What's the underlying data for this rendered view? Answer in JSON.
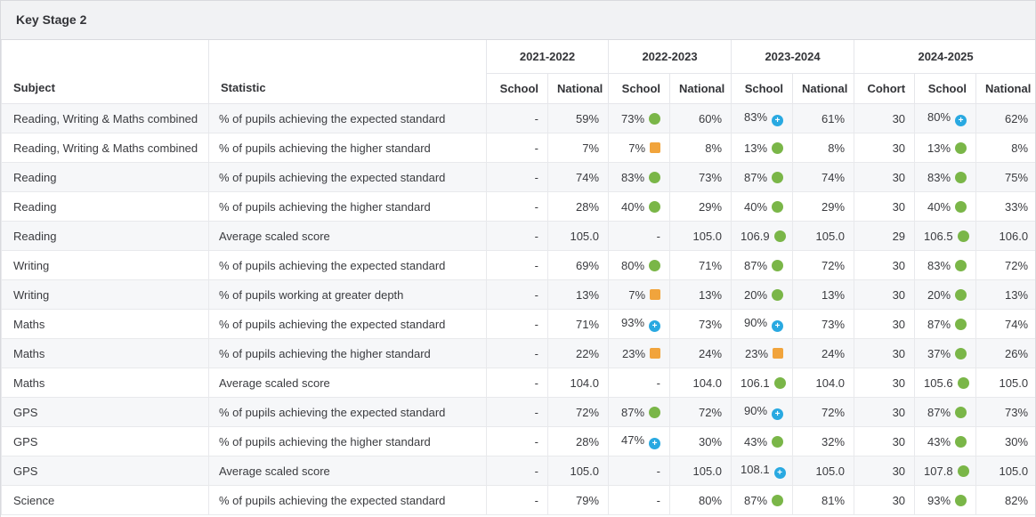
{
  "panel": {
    "title": "Key Stage 2"
  },
  "colors": {
    "icon_green": "#7ab648",
    "icon_orange": "#f1a43c",
    "icon_blue": "#29a9e1",
    "header_band_bg": "#f1f2f4",
    "row_stripe_bg": "#f6f7f9"
  },
  "table": {
    "col_headers": {
      "subject": "Subject",
      "statistic": "Statistic"
    },
    "year_groups": [
      {
        "label": "2021-2022",
        "cols": [
          "School",
          "National"
        ]
      },
      {
        "label": "2022-2023",
        "cols": [
          "School",
          "National"
        ]
      },
      {
        "label": "2023-2024",
        "cols": [
          "School",
          "National"
        ]
      },
      {
        "label": "2024-2025",
        "cols": [
          "Cohort",
          "School",
          "National"
        ]
      }
    ],
    "rows": [
      {
        "subject": "Reading, Writing & Maths combined",
        "statistic": "% of pupils achieving the expected standard",
        "cells": [
          {
            "v": "-"
          },
          {
            "v": "59%"
          },
          {
            "v": "73%",
            "icon": "green-circle"
          },
          {
            "v": "60%"
          },
          {
            "v": "83%",
            "icon": "blue-plus"
          },
          {
            "v": "61%"
          },
          {
            "v": "30"
          },
          {
            "v": "80%",
            "icon": "blue-plus"
          },
          {
            "v": "62%"
          }
        ]
      },
      {
        "subject": "Reading, Writing & Maths combined",
        "statistic": "% of pupils achieving the higher standard",
        "cells": [
          {
            "v": "-"
          },
          {
            "v": "7%"
          },
          {
            "v": "7%",
            "icon": "orange-square"
          },
          {
            "v": "8%"
          },
          {
            "v": "13%",
            "icon": "green-circle"
          },
          {
            "v": "8%"
          },
          {
            "v": "30"
          },
          {
            "v": "13%",
            "icon": "green-circle"
          },
          {
            "v": "8%"
          }
        ]
      },
      {
        "subject": "Reading",
        "statistic": "% of pupils achieving the expected standard",
        "cells": [
          {
            "v": "-"
          },
          {
            "v": "74%"
          },
          {
            "v": "83%",
            "icon": "green-circle"
          },
          {
            "v": "73%"
          },
          {
            "v": "87%",
            "icon": "green-circle"
          },
          {
            "v": "74%"
          },
          {
            "v": "30"
          },
          {
            "v": "83%",
            "icon": "green-circle"
          },
          {
            "v": "75%"
          }
        ]
      },
      {
        "subject": "Reading",
        "statistic": "% of pupils achieving the higher standard",
        "cells": [
          {
            "v": "-"
          },
          {
            "v": "28%"
          },
          {
            "v": "40%",
            "icon": "green-circle"
          },
          {
            "v": "29%"
          },
          {
            "v": "40%",
            "icon": "green-circle"
          },
          {
            "v": "29%"
          },
          {
            "v": "30"
          },
          {
            "v": "40%",
            "icon": "green-circle"
          },
          {
            "v": "33%"
          }
        ]
      },
      {
        "subject": "Reading",
        "statistic": "Average scaled score",
        "cells": [
          {
            "v": "-"
          },
          {
            "v": "105.0"
          },
          {
            "v": "-"
          },
          {
            "v": "105.0"
          },
          {
            "v": "106.9",
            "icon": "green-circle"
          },
          {
            "v": "105.0"
          },
          {
            "v": "29"
          },
          {
            "v": "106.5",
            "icon": "green-circle"
          },
          {
            "v": "106.0"
          }
        ]
      },
      {
        "subject": "Writing",
        "statistic": "% of pupils achieving the expected standard",
        "cells": [
          {
            "v": "-"
          },
          {
            "v": "69%"
          },
          {
            "v": "80%",
            "icon": "green-circle"
          },
          {
            "v": "71%"
          },
          {
            "v": "87%",
            "icon": "green-circle"
          },
          {
            "v": "72%"
          },
          {
            "v": "30"
          },
          {
            "v": "83%",
            "icon": "green-circle"
          },
          {
            "v": "72%"
          }
        ]
      },
      {
        "subject": "Writing",
        "statistic": "% of pupils working at greater depth",
        "cells": [
          {
            "v": "-"
          },
          {
            "v": "13%"
          },
          {
            "v": "7%",
            "icon": "orange-square"
          },
          {
            "v": "13%"
          },
          {
            "v": "20%",
            "icon": "green-circle"
          },
          {
            "v": "13%"
          },
          {
            "v": "30"
          },
          {
            "v": "20%",
            "icon": "green-circle"
          },
          {
            "v": "13%"
          }
        ]
      },
      {
        "subject": "Maths",
        "statistic": "% of pupils achieving the expected standard",
        "cells": [
          {
            "v": "-"
          },
          {
            "v": "71%"
          },
          {
            "v": "93%",
            "icon": "blue-plus"
          },
          {
            "v": "73%"
          },
          {
            "v": "90%",
            "icon": "blue-plus"
          },
          {
            "v": "73%"
          },
          {
            "v": "30"
          },
          {
            "v": "87%",
            "icon": "green-circle"
          },
          {
            "v": "74%"
          }
        ]
      },
      {
        "subject": "Maths",
        "statistic": "% of pupils achieving the higher standard",
        "cells": [
          {
            "v": "-"
          },
          {
            "v": "22%"
          },
          {
            "v": "23%",
            "icon": "orange-square"
          },
          {
            "v": "24%"
          },
          {
            "v": "23%",
            "icon": "orange-square"
          },
          {
            "v": "24%"
          },
          {
            "v": "30"
          },
          {
            "v": "37%",
            "icon": "green-circle"
          },
          {
            "v": "26%"
          }
        ]
      },
      {
        "subject": "Maths",
        "statistic": "Average scaled score",
        "cells": [
          {
            "v": "-"
          },
          {
            "v": "104.0"
          },
          {
            "v": "-"
          },
          {
            "v": "104.0"
          },
          {
            "v": "106.1",
            "icon": "green-circle"
          },
          {
            "v": "104.0"
          },
          {
            "v": "30"
          },
          {
            "v": "105.6",
            "icon": "green-circle"
          },
          {
            "v": "105.0"
          }
        ]
      },
      {
        "subject": "GPS",
        "statistic": "% of pupils achieving the expected standard",
        "cells": [
          {
            "v": "-"
          },
          {
            "v": "72%"
          },
          {
            "v": "87%",
            "icon": "green-circle"
          },
          {
            "v": "72%"
          },
          {
            "v": "90%",
            "icon": "blue-plus"
          },
          {
            "v": "72%"
          },
          {
            "v": "30"
          },
          {
            "v": "87%",
            "icon": "green-circle"
          },
          {
            "v": "73%"
          }
        ]
      },
      {
        "subject": "GPS",
        "statistic": "% of pupils achieving the higher standard",
        "cells": [
          {
            "v": "-"
          },
          {
            "v": "28%"
          },
          {
            "v": "47%",
            "icon": "blue-plus"
          },
          {
            "v": "30%"
          },
          {
            "v": "43%",
            "icon": "green-circle"
          },
          {
            "v": "32%"
          },
          {
            "v": "30"
          },
          {
            "v": "43%",
            "icon": "green-circle"
          },
          {
            "v": "30%"
          }
        ]
      },
      {
        "subject": "GPS",
        "statistic": "Average scaled score",
        "cells": [
          {
            "v": "-"
          },
          {
            "v": "105.0"
          },
          {
            "v": "-"
          },
          {
            "v": "105.0"
          },
          {
            "v": "108.1",
            "icon": "blue-plus"
          },
          {
            "v": "105.0"
          },
          {
            "v": "30"
          },
          {
            "v": "107.8",
            "icon": "green-circle"
          },
          {
            "v": "105.0"
          }
        ]
      },
      {
        "subject": "Science",
        "statistic": "% of pupils achieving the expected standard",
        "cells": [
          {
            "v": "-"
          },
          {
            "v": "79%"
          },
          {
            "v": "-"
          },
          {
            "v": "80%"
          },
          {
            "v": "87%",
            "icon": "green-circle"
          },
          {
            "v": "81%"
          },
          {
            "v": "30"
          },
          {
            "v": "93%",
            "icon": "green-circle"
          },
          {
            "v": "82%"
          }
        ]
      }
    ]
  }
}
